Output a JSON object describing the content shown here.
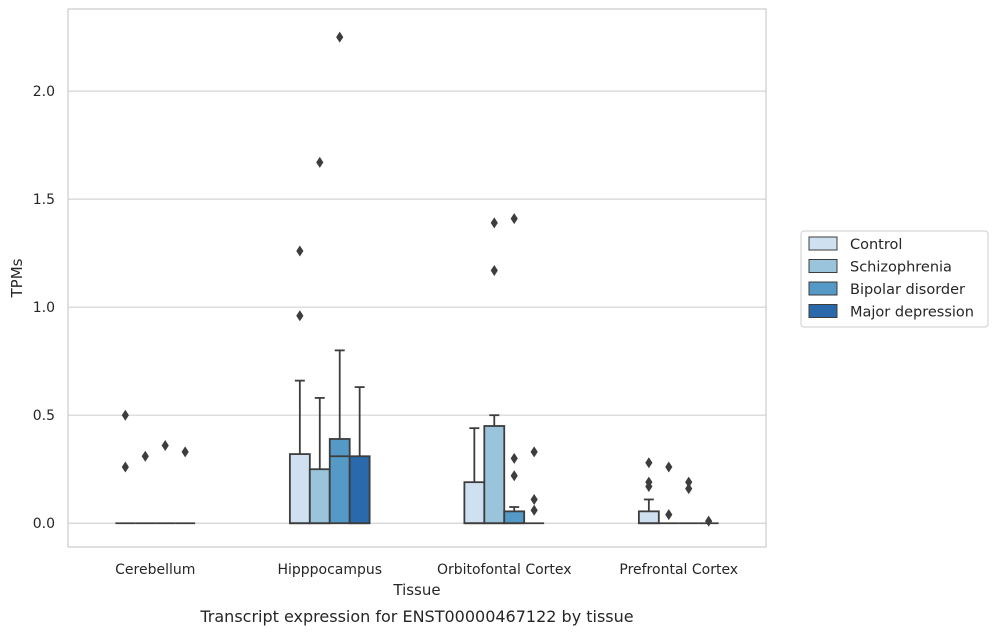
{
  "chart_data": {
    "type": "boxplot",
    "caption": "Transcript expression for ENST00000467122 by tissue",
    "xlabel": "Tissue",
    "ylabel": "TPMs",
    "ylim": [
      -0.11,
      2.38
    ],
    "yticks": [
      0.0,
      0.5,
      1.0,
      1.5,
      2.0
    ],
    "ytick_labels": [
      "0.0",
      "0.5",
      "1.0",
      "1.5",
      "2.0"
    ],
    "grid": "horizontal",
    "legend_position": "right",
    "categories": [
      "Cerebellum",
      "Hipppocampus",
      "Orbitofontal Cortex",
      "Prefrontal Cortex"
    ],
    "series": [
      {
        "name": "Control",
        "color": "#cfe0f0",
        "boxes": [
          {
            "q1": 0,
            "median": 0,
            "q3": 0,
            "whislo": 0,
            "whishi": 0,
            "fliers": [
              0.26,
              0.5
            ]
          },
          {
            "q1": 0,
            "median": 0,
            "q3": 0.32,
            "whislo": 0,
            "whishi": 0.66,
            "fliers": [
              0.96,
              1.26
            ]
          },
          {
            "q1": 0,
            "median": 0,
            "q3": 0.19,
            "whislo": 0,
            "whishi": 0.44,
            "fliers": []
          },
          {
            "q1": 0,
            "median": 0,
            "q3": 0.055,
            "whislo": 0,
            "whishi": 0.11,
            "fliers": [
              0.17,
              0.19,
              0.28
            ]
          }
        ]
      },
      {
        "name": "Schizophrenia",
        "color": "#9ac3dc",
        "boxes": [
          {
            "q1": 0,
            "median": 0,
            "q3": 0,
            "whislo": 0,
            "whishi": 0,
            "fliers": [
              0.31
            ]
          },
          {
            "q1": 0,
            "median": 0,
            "q3": 0.25,
            "whislo": 0,
            "whishi": 0.58,
            "fliers": [
              1.67
            ]
          },
          {
            "q1": 0,
            "median": 0,
            "q3": 0.45,
            "whislo": 0,
            "whishi": 0.5,
            "fliers": [
              1.17,
              1.39
            ]
          },
          {
            "q1": 0,
            "median": 0,
            "q3": 0,
            "whislo": 0,
            "whishi": 0,
            "fliers": [
              0.04,
              0.26
            ]
          }
        ]
      },
      {
        "name": "Bipolar disorder",
        "color": "#5599c6",
        "boxes": [
          {
            "q1": 0,
            "median": 0,
            "q3": 0,
            "whislo": 0,
            "whishi": 0,
            "fliers": [
              0.36
            ]
          },
          {
            "q1": 0,
            "median": 0.31,
            "q3": 0.39,
            "whislo": 0,
            "whishi": 0.8,
            "fliers": [
              2.25
            ]
          },
          {
            "q1": 0,
            "median": 0,
            "q3": 0.055,
            "whislo": 0,
            "whishi": 0.075,
            "fliers": [
              0.22,
              0.3,
              1.41
            ]
          },
          {
            "q1": 0,
            "median": 0,
            "q3": 0,
            "whislo": 0,
            "whishi": 0,
            "fliers": [
              0.16,
              0.19
            ]
          }
        ]
      },
      {
        "name": "Major depression",
        "color": "#2a6aac",
        "boxes": [
          {
            "q1": 0,
            "median": 0,
            "q3": 0,
            "whislo": 0,
            "whishi": 0,
            "fliers": [
              0.33
            ]
          },
          {
            "q1": 0,
            "median": 0,
            "q3": 0.31,
            "whislo": 0,
            "whishi": 0.63,
            "fliers": []
          },
          {
            "q1": 0,
            "median": 0,
            "q3": 0,
            "whislo": 0,
            "whishi": 0,
            "fliers": [
              0.06,
              0.11,
              0.33
            ]
          },
          {
            "q1": 0,
            "median": 0,
            "q3": 0,
            "whislo": 0,
            "whishi": 0,
            "fliers": [
              0.01
            ]
          }
        ]
      }
    ]
  }
}
